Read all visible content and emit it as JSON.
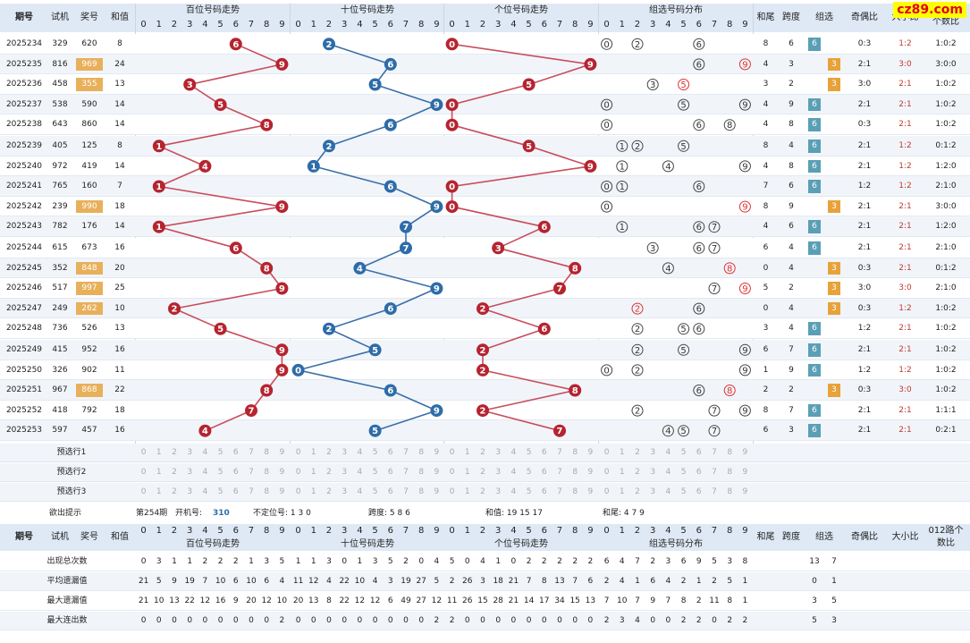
{
  "header": {
    "period_label": "期号",
    "test_label": "试机",
    "prize_label": "奖号",
    "sum_label": "和值",
    "hundreds_label": "百位号码走势",
    "tens_label": "十位号码走势",
    "ones_label": "个位号码走势",
    "group_label": "组选号码分布",
    "tail_label": "和尾",
    "span_label": "跨度",
    "group_type_label": "组选",
    "odd_even_label": "奇偶比",
    "big_small_label": "大小比",
    "count_label": "个数比",
    "digits": [
      "0",
      "1",
      "2",
      "3",
      "4",
      "5",
      "6",
      "7",
      "8",
      "9"
    ]
  },
  "logo": "cz89.com",
  "rows": [
    {
      "period": "2025234",
      "test": "329",
      "prize": "620",
      "sum": "8",
      "h": 6,
      "t": 2,
      "o": 0,
      "tail": "8",
      "span": "6",
      "gtype": "6",
      "oe": "0:3",
      "bs": "1:2",
      "cnt": "1:0:2",
      "prize_hl": false
    },
    {
      "period": "2025235",
      "test": "816",
      "prize": "969",
      "sum": "24",
      "h": 9,
      "t": 6,
      "o": 9,
      "tail": "4",
      "span": "3",
      "gtype": "3",
      "oe": "2:1",
      "bs": "3:0",
      "cnt": "3:0:0",
      "prize_hl": true
    },
    {
      "period": "2025236",
      "test": "458",
      "prize": "355",
      "sum": "13",
      "h": 3,
      "t": 5,
      "o": 5,
      "tail": "3",
      "span": "2",
      "gtype": "3",
      "oe": "3:0",
      "bs": "2:1",
      "cnt": "1:0:2",
      "prize_hl": true
    },
    {
      "period": "2025237",
      "test": "538",
      "prize": "590",
      "sum": "14",
      "h": 5,
      "t": 9,
      "o": 0,
      "tail": "4",
      "span": "9",
      "gtype": "6",
      "oe": "2:1",
      "bs": "2:1",
      "cnt": "1:0:2",
      "prize_hl": false
    },
    {
      "period": "2025238",
      "test": "643",
      "prize": "860",
      "sum": "14",
      "h": 8,
      "t": 6,
      "o": 0,
      "tail": "4",
      "span": "8",
      "gtype": "6",
      "oe": "0:3",
      "bs": "2:1",
      "cnt": "1:0:2",
      "prize_hl": false
    },
    {
      "period": "2025239",
      "test": "405",
      "prize": "125",
      "sum": "8",
      "h": 1,
      "t": 2,
      "o": 5,
      "tail": "8",
      "span": "4",
      "gtype": "6",
      "oe": "2:1",
      "bs": "1:2",
      "cnt": "0:1:2",
      "prize_hl": false
    },
    {
      "period": "2025240",
      "test": "972",
      "prize": "419",
      "sum": "14",
      "h": 4,
      "t": 1,
      "o": 9,
      "tail": "4",
      "span": "8",
      "gtype": "6",
      "oe": "2:1",
      "bs": "1:2",
      "cnt": "1:2:0",
      "prize_hl": false
    },
    {
      "period": "2025241",
      "test": "765",
      "prize": "160",
      "sum": "7",
      "h": 1,
      "t": 6,
      "o": 0,
      "tail": "7",
      "span": "6",
      "gtype": "6",
      "oe": "1:2",
      "bs": "1:2",
      "cnt": "2:1:0",
      "prize_hl": false
    },
    {
      "period": "2025242",
      "test": "239",
      "prize": "990",
      "sum": "18",
      "h": 9,
      "t": 9,
      "o": 0,
      "tail": "8",
      "span": "9",
      "gtype": "3",
      "oe": "2:1",
      "bs": "2:1",
      "cnt": "3:0:0",
      "prize_hl": true
    },
    {
      "period": "2025243",
      "test": "782",
      "prize": "176",
      "sum": "14",
      "h": 1,
      "t": 7,
      "o": 6,
      "tail": "4",
      "span": "6",
      "gtype": "6",
      "oe": "2:1",
      "bs": "2:1",
      "cnt": "1:2:0",
      "prize_hl": false
    },
    {
      "period": "2025244",
      "test": "615",
      "prize": "673",
      "sum": "16",
      "h": 6,
      "t": 7,
      "o": 3,
      "tail": "6",
      "span": "4",
      "gtype": "6",
      "oe": "2:1",
      "bs": "2:1",
      "cnt": "2:1:0",
      "prize_hl": false
    },
    {
      "period": "2025245",
      "test": "352",
      "prize": "848",
      "sum": "20",
      "h": 8,
      "t": 4,
      "o": 8,
      "tail": "0",
      "span": "4",
      "gtype": "3",
      "oe": "0:3",
      "bs": "2:1",
      "cnt": "0:1:2",
      "prize_hl": true
    },
    {
      "period": "2025246",
      "test": "517",
      "prize": "997",
      "sum": "25",
      "h": 9,
      "t": 9,
      "o": 7,
      "tail": "5",
      "span": "2",
      "gtype": "3",
      "oe": "3:0",
      "bs": "3:0",
      "cnt": "2:1:0",
      "prize_hl": true
    },
    {
      "period": "2025247",
      "test": "249",
      "prize": "262",
      "sum": "10",
      "h": 2,
      "t": 6,
      "o": 2,
      "tail": "0",
      "span": "4",
      "gtype": "3",
      "oe": "0:3",
      "bs": "1:2",
      "cnt": "1:0:2",
      "prize_hl": true
    },
    {
      "period": "2025248",
      "test": "736",
      "prize": "526",
      "sum": "13",
      "h": 5,
      "t": 2,
      "o": 6,
      "tail": "3",
      "span": "4",
      "gtype": "6",
      "oe": "1:2",
      "bs": "2:1",
      "cnt": "1:0:2",
      "prize_hl": false
    },
    {
      "period": "2025249",
      "test": "415",
      "prize": "952",
      "sum": "16",
      "h": 9,
      "t": 5,
      "o": 2,
      "tail": "6",
      "span": "7",
      "gtype": "6",
      "oe": "2:1",
      "bs": "2:1",
      "cnt": "1:0:2",
      "prize_hl": false
    },
    {
      "period": "2025250",
      "test": "326",
      "prize": "902",
      "sum": "11",
      "h": 9,
      "t": 0,
      "o": 2,
      "tail": "1",
      "span": "9",
      "gtype": "6",
      "oe": "1:2",
      "bs": "1:2",
      "cnt": "1:0:2",
      "prize_hl": false
    },
    {
      "period": "2025251",
      "test": "967",
      "prize": "868",
      "sum": "22",
      "h": 8,
      "t": 6,
      "o": 8,
      "tail": "2",
      "span": "2",
      "gtype": "3",
      "oe": "0:3",
      "bs": "3:0",
      "cnt": "1:0:2",
      "prize_hl": true
    },
    {
      "period": "2025252",
      "test": "418",
      "prize": "792",
      "sum": "18",
      "h": 7,
      "t": 9,
      "o": 2,
      "tail": "8",
      "span": "7",
      "gtype": "6",
      "oe": "2:1",
      "bs": "2:1",
      "cnt": "1:1:1",
      "prize_hl": false
    },
    {
      "period": "2025253",
      "test": "597",
      "prize": "457",
      "sum": "16",
      "h": 4,
      "t": 5,
      "o": 7,
      "tail": "6",
      "span": "3",
      "gtype": "6",
      "oe": "2:1",
      "bs": "2:1",
      "cnt": "0:2:1",
      "prize_hl": false
    }
  ],
  "preselect": [
    "预选行1",
    "预选行2",
    "预选行3"
  ],
  "hint": {
    "label": "欲出提示",
    "issue": "第254期",
    "open_label": "开机号:",
    "open_value": "310",
    "unfixed": "不定位号: 1 3 0",
    "span": "跨度: 5 8 6",
    "sum": "和值: 19 15 17",
    "tail": "和尾: 4 7 9"
  },
  "stats": {
    "labels": [
      "出现总次数",
      "平均遗漏值",
      "最大遗漏值",
      "最大连出数"
    ],
    "count_header": "012路个数比",
    "hundreds": [
      [
        "0",
        "3",
        "1",
        "1",
        "2",
        "2",
        "2",
        "1",
        "3",
        "5"
      ],
      [
        "21",
        "5",
        "9",
        "19",
        "7",
        "10",
        "6",
        "10",
        "6",
        "4"
      ],
      [
        "21",
        "10",
        "13",
        "22",
        "12",
        "16",
        "9",
        "20",
        "12",
        "10"
      ],
      [
        "0",
        "0",
        "0",
        "0",
        "0",
        "0",
        "0",
        "0",
        "0",
        "2"
      ]
    ],
    "tens": [
      [
        "1",
        "1",
        "3",
        "0",
        "1",
        "3",
        "5",
        "2",
        "0",
        "4"
      ],
      [
        "11",
        "12",
        "4",
        "22",
        "10",
        "4",
        "3",
        "19",
        "27",
        "5"
      ],
      [
        "20",
        "13",
        "8",
        "22",
        "12",
        "12",
        "6",
        "49",
        "27",
        "12"
      ],
      [
        "0",
        "0",
        "0",
        "0",
        "0",
        "0",
        "0",
        "0",
        "0",
        "2"
      ]
    ],
    "ones": [
      [
        "5",
        "0",
        "4",
        "1",
        "0",
        "2",
        "2",
        "2",
        "2",
        "2"
      ],
      [
        "2",
        "26",
        "3",
        "18",
        "21",
        "7",
        "8",
        "13",
        "7",
        "6"
      ],
      [
        "11",
        "26",
        "15",
        "28",
        "21",
        "14",
        "17",
        "34",
        "15",
        "13"
      ],
      [
        "2",
        "0",
        "0",
        "0",
        "0",
        "0",
        "0",
        "0",
        "0",
        "0"
      ]
    ],
    "group": [
      [
        "6",
        "4",
        "7",
        "2",
        "3",
        "6",
        "9",
        "5",
        "3",
        "8"
      ],
      [
        "2",
        "4",
        "1",
        "6",
        "4",
        "2",
        "1",
        "2",
        "5",
        "1"
      ],
      [
        "7",
        "10",
        "7",
        "9",
        "7",
        "8",
        "2",
        "11",
        "8",
        "1"
      ],
      [
        "2",
        "3",
        "4",
        "0",
        "0",
        "2",
        "2",
        "0",
        "2",
        "2"
      ]
    ],
    "gtype": [
      [
        "13",
        "7"
      ],
      [
        "0",
        "1"
      ],
      [
        "3",
        "5"
      ],
      [
        "5",
        "3"
      ]
    ]
  },
  "chart_data": {
    "type": "line",
    "title": "",
    "x": [
      "2025234",
      "2025235",
      "2025236",
      "2025237",
      "2025238",
      "2025239",
      "2025240",
      "2025241",
      "2025242",
      "2025243",
      "2025244",
      "2025245",
      "2025246",
      "2025247",
      "2025248",
      "2025249",
      "2025250",
      "2025251",
      "2025252",
      "2025253"
    ],
    "series": [
      {
        "name": "百位号码走势",
        "values": [
          6,
          9,
          3,
          5,
          8,
          1,
          4,
          1,
          9,
          1,
          6,
          8,
          9,
          2,
          5,
          9,
          9,
          8,
          7,
          4
        ]
      },
      {
        "name": "十位号码走势",
        "values": [
          2,
          6,
          5,
          9,
          6,
          2,
          1,
          6,
          9,
          7,
          7,
          4,
          9,
          6,
          2,
          5,
          0,
          6,
          9,
          5
        ]
      },
      {
        "name": "个位号码走势",
        "values": [
          0,
          9,
          5,
          0,
          0,
          5,
          9,
          0,
          0,
          6,
          3,
          8,
          7,
          2,
          6,
          2,
          2,
          8,
          2,
          7
        ]
      }
    ],
    "ylim": [
      0,
      9
    ]
  }
}
